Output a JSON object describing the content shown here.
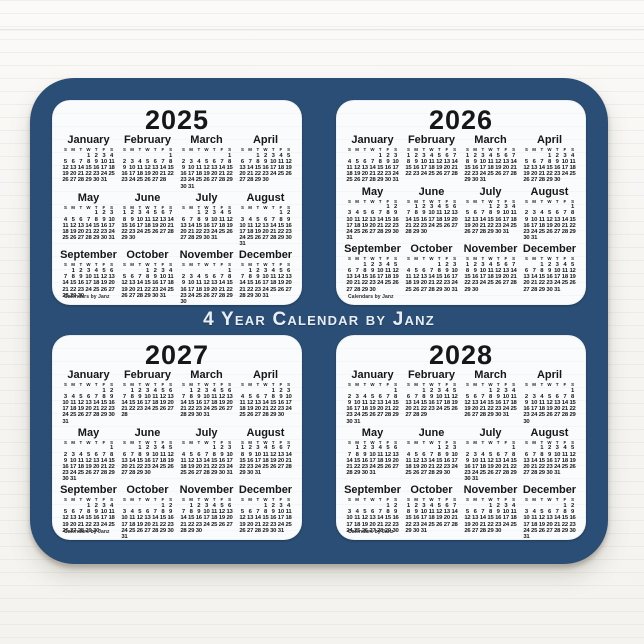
{
  "title": "4 Year Calendar by Janz",
  "branding": "Calendars by Janz",
  "weekday_header": [
    "S",
    "M",
    "T",
    "W",
    "T",
    "F",
    "S"
  ],
  "colors": {
    "pad": "#2a4e76",
    "card": "#fafbfc",
    "text": "#171717",
    "title_text": "#e9eef5",
    "wall": "#f7f6f3"
  },
  "years": [
    {
      "year": "2025",
      "months": [
        {
          "name": "January",
          "first_weekday": 3,
          "num_days": 31
        },
        {
          "name": "February",
          "first_weekday": 6,
          "num_days": 28
        },
        {
          "name": "March",
          "first_weekday": 6,
          "num_days": 31
        },
        {
          "name": "April",
          "first_weekday": 2,
          "num_days": 30
        },
        {
          "name": "May",
          "first_weekday": 4,
          "num_days": 31
        },
        {
          "name": "June",
          "first_weekday": 0,
          "num_days": 30
        },
        {
          "name": "July",
          "first_weekday": 2,
          "num_days": 31
        },
        {
          "name": "August",
          "first_weekday": 5,
          "num_days": 31
        },
        {
          "name": "September",
          "first_weekday": 1,
          "num_days": 30
        },
        {
          "name": "October",
          "first_weekday": 3,
          "num_days": 31
        },
        {
          "name": "November",
          "first_weekday": 6,
          "num_days": 30
        },
        {
          "name": "December",
          "first_weekday": 1,
          "num_days": 31
        }
      ]
    },
    {
      "year": "2026",
      "months": [
        {
          "name": "January",
          "first_weekday": 4,
          "num_days": 31
        },
        {
          "name": "February",
          "first_weekday": 0,
          "num_days": 28
        },
        {
          "name": "March",
          "first_weekday": 0,
          "num_days": 31
        },
        {
          "name": "April",
          "first_weekday": 3,
          "num_days": 30
        },
        {
          "name": "May",
          "first_weekday": 5,
          "num_days": 31
        },
        {
          "name": "June",
          "first_weekday": 1,
          "num_days": 30
        },
        {
          "name": "July",
          "first_weekday": 3,
          "num_days": 31
        },
        {
          "name": "August",
          "first_weekday": 6,
          "num_days": 31
        },
        {
          "name": "September",
          "first_weekday": 2,
          "num_days": 30
        },
        {
          "name": "October",
          "first_weekday": 4,
          "num_days": 31
        },
        {
          "name": "November",
          "first_weekday": 0,
          "num_days": 30
        },
        {
          "name": "December",
          "first_weekday": 2,
          "num_days": 31
        }
      ]
    },
    {
      "year": "2027",
      "months": [
        {
          "name": "January",
          "first_weekday": 5,
          "num_days": 31
        },
        {
          "name": "February",
          "first_weekday": 1,
          "num_days": 28
        },
        {
          "name": "March",
          "first_weekday": 1,
          "num_days": 31
        },
        {
          "name": "April",
          "first_weekday": 4,
          "num_days": 30
        },
        {
          "name": "May",
          "first_weekday": 6,
          "num_days": 31
        },
        {
          "name": "June",
          "first_weekday": 2,
          "num_days": 30
        },
        {
          "name": "July",
          "first_weekday": 4,
          "num_days": 31
        },
        {
          "name": "August",
          "first_weekday": 0,
          "num_days": 31
        },
        {
          "name": "September",
          "first_weekday": 3,
          "num_days": 30
        },
        {
          "name": "October",
          "first_weekday": 5,
          "num_days": 31
        },
        {
          "name": "November",
          "first_weekday": 1,
          "num_days": 30
        },
        {
          "name": "December",
          "first_weekday": 3,
          "num_days": 31
        }
      ]
    },
    {
      "year": "2028",
      "months": [
        {
          "name": "January",
          "first_weekday": 6,
          "num_days": 31
        },
        {
          "name": "February",
          "first_weekday": 2,
          "num_days": 29
        },
        {
          "name": "March",
          "first_weekday": 3,
          "num_days": 31
        },
        {
          "name": "April",
          "first_weekday": 6,
          "num_days": 30
        },
        {
          "name": "May",
          "first_weekday": 1,
          "num_days": 31
        },
        {
          "name": "June",
          "first_weekday": 4,
          "num_days": 30
        },
        {
          "name": "July",
          "first_weekday": 6,
          "num_days": 31
        },
        {
          "name": "August",
          "first_weekday": 2,
          "num_days": 31
        },
        {
          "name": "September",
          "first_weekday": 5,
          "num_days": 30
        },
        {
          "name": "October",
          "first_weekday": 0,
          "num_days": 31
        },
        {
          "name": "November",
          "first_weekday": 3,
          "num_days": 30
        },
        {
          "name": "December",
          "first_weekday": 5,
          "num_days": 31
        }
      ]
    }
  ]
}
